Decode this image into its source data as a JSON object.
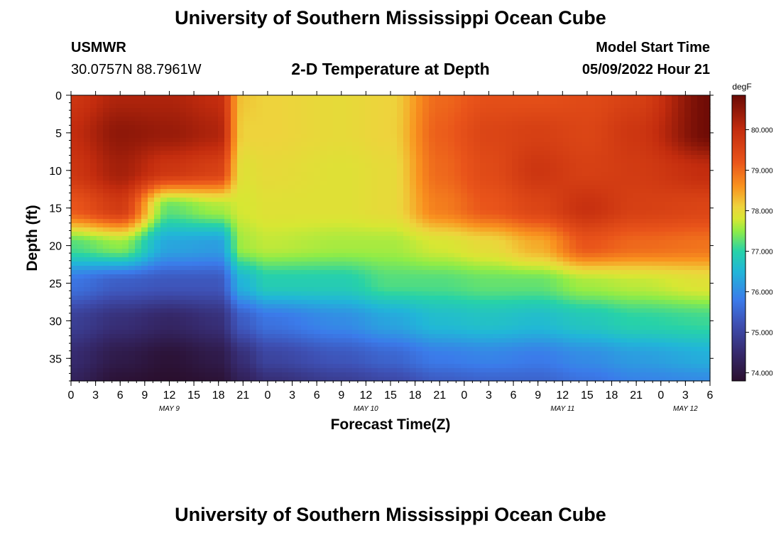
{
  "page_title": "University of Southern Mississippi Ocean Cube",
  "station": {
    "name": "USMWR",
    "coords": "30.0757N  88.7961W"
  },
  "plot_title": "2-D Temperature at Depth",
  "model_start": {
    "label": "Model Start Time",
    "value": "05/09/2022 Hour 21"
  },
  "colorbar": {
    "units": "degF",
    "min": 73.8,
    "max": 80.85,
    "ticks": [
      74,
      75,
      76,
      77,
      78,
      79,
      80
    ],
    "tick_labels": [
      "74.000",
      "75.000",
      "76.000",
      "77.000",
      "78.000",
      "79.000",
      "80.000"
    ],
    "stops": [
      {
        "v": 73.8,
        "color": "#2a0f2e"
      },
      {
        "v": 74.5,
        "color": "#362a6e"
      },
      {
        "v": 75.2,
        "color": "#3e4fb2"
      },
      {
        "v": 75.8,
        "color": "#3b7bea"
      },
      {
        "v": 76.5,
        "color": "#21b6d8"
      },
      {
        "v": 77.0,
        "color": "#27d2a8"
      },
      {
        "v": 77.5,
        "color": "#8fec47"
      },
      {
        "v": 77.8,
        "color": "#d7e733"
      },
      {
        "v": 78.1,
        "color": "#eed33c"
      },
      {
        "v": 78.6,
        "color": "#f9931f"
      },
      {
        "v": 79.2,
        "color": "#e9541a"
      },
      {
        "v": 80.0,
        "color": "#c32c0e"
      },
      {
        "v": 80.85,
        "color": "#6a0a05"
      }
    ]
  },
  "footer_title": "University of Southern Mississippi Ocean Cube",
  "chart_data": {
    "type": "heatmap",
    "title": "2-D Temperature at Depth",
    "xlabel": "Forecast Time(Z)",
    "ylabel": "Depth (ft)",
    "units": "degF",
    "xlim": [
      0,
      78
    ],
    "ylim": [
      0,
      38
    ],
    "x_tick_labels": [
      "0",
      "3",
      "6",
      "9",
      "12",
      "15",
      "18",
      "21",
      "0",
      "3",
      "6",
      "9",
      "12",
      "15",
      "18",
      "21",
      "0",
      "3",
      "6",
      "9",
      "12",
      "15",
      "18",
      "21",
      "0",
      "3",
      "6"
    ],
    "y_ticks": [
      0,
      5,
      10,
      15,
      20,
      25,
      30,
      35
    ],
    "day_labels": [
      {
        "label": "MAY 9",
        "x": 12
      },
      {
        "label": "MAY 10",
        "x": 36
      },
      {
        "label": "MAY 11",
        "x": 60
      },
      {
        "label": "MAY 12",
        "x": 75
      }
    ],
    "grid": false,
    "profile_times": [
      0,
      6,
      12,
      18,
      21,
      24,
      33,
      39,
      45,
      51,
      57,
      63,
      69,
      78
    ],
    "profile_depths": [
      0,
      5,
      10,
      15,
      20,
      25,
      30,
      35,
      38
    ],
    "temperature_profiles": [
      [
        79.8,
        80.0,
        79.8,
        79.2,
        77.2,
        75.7,
        74.9,
        74.5,
        74.3
      ],
      [
        80.2,
        80.5,
        80.3,
        79.7,
        77.5,
        75.4,
        74.6,
        74.1,
        73.9
      ],
      [
        80.2,
        80.4,
        79.8,
        77.3,
        76.3,
        75.3,
        74.4,
        73.9,
        73.8
      ],
      [
        80.0,
        80.2,
        79.6,
        77.6,
        76.2,
        75.3,
        74.6,
        74.1,
        73.9
      ],
      [
        78.2,
        78.1,
        77.9,
        77.8,
        77.6,
        76.5,
        75.4,
        74.6,
        74.3
      ],
      [
        78.1,
        78.1,
        78.0,
        77.9,
        77.7,
        76.9,
        75.7,
        75.0,
        74.6
      ],
      [
        78.0,
        78.0,
        77.9,
        77.9,
        77.6,
        76.9,
        76.0,
        75.3,
        74.9
      ],
      [
        78.1,
        78.1,
        78.0,
        78.0,
        77.6,
        77.2,
        76.3,
        75.5,
        75.1
      ],
      [
        79.0,
        79.1,
        79.0,
        78.8,
        77.8,
        77.2,
        76.6,
        75.8,
        75.4
      ],
      [
        79.3,
        79.5,
        79.4,
        79.2,
        78.0,
        77.3,
        76.7,
        75.9,
        75.5
      ],
      [
        79.3,
        79.6,
        79.8,
        79.5,
        78.4,
        77.3,
        76.6,
        75.8,
        75.5
      ],
      [
        79.4,
        79.5,
        79.6,
        79.9,
        79.2,
        77.6,
        76.8,
        76.0,
        75.7
      ],
      [
        79.6,
        79.8,
        79.7,
        79.6,
        79.0,
        77.7,
        77.0,
        76.2,
        75.9
      ],
      [
        80.8,
        80.8,
        80.0,
        79.5,
        78.9,
        77.9,
        77.1,
        76.4,
        76.0
      ]
    ]
  }
}
